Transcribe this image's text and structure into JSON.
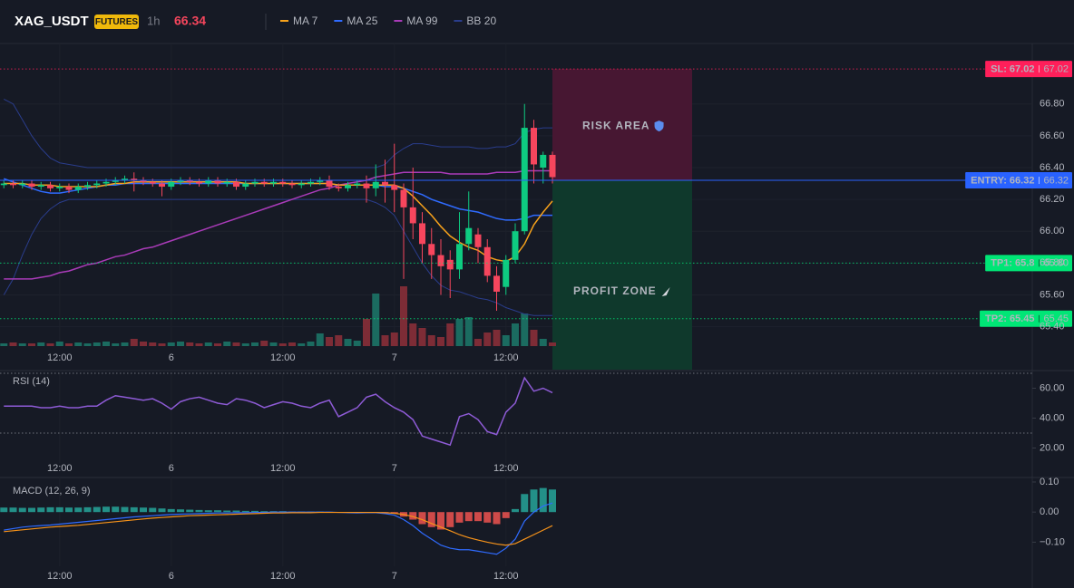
{
  "chart_data": {
    "type": "candlestick",
    "symbol": "XAG_USDT",
    "contract": "FUTURES",
    "interval": "1h",
    "last_price": 66.34,
    "categories": [
      null,
      null,
      null,
      null,
      null,
      null,
      "12:00",
      null,
      null,
      null,
      null,
      null,
      null,
      null,
      null,
      null,
      null,
      null,
      "6",
      null,
      null,
      null,
      null,
      null,
      null,
      null,
      null,
      null,
      null,
      null,
      "12:00",
      null,
      null,
      null,
      null,
      null,
      null,
      null,
      null,
      null,
      null,
      null,
      "7",
      null,
      null,
      null,
      null,
      null,
      null,
      null,
      null,
      null,
      null,
      null,
      "12:00",
      null,
      null,
      null,
      null,
      null
    ],
    "open": [
      66.29,
      66.3,
      66.29,
      66.3,
      66.28,
      66.29,
      66.27,
      66.28,
      66.26,
      66.28,
      66.29,
      66.3,
      66.31,
      66.32,
      66.33,
      66.32,
      66.31,
      66.3,
      66.28,
      66.31,
      66.32,
      66.31,
      66.3,
      66.32,
      66.3,
      66.31,
      66.28,
      66.3,
      66.31,
      66.3,
      66.31,
      66.3,
      66.29,
      66.3,
      66.31,
      66.32,
      66.28,
      66.27,
      66.29,
      66.3,
      66.27,
      66.31,
      66.29,
      66.26,
      66.15,
      66.05,
      65.92,
      65.85,
      65.82,
      65.76,
      65.92,
      65.98,
      65.9,
      65.72,
      65.65,
      65.82,
      66.0,
      66.65,
      66.4,
      66.48
    ],
    "high": [
      66.32,
      66.32,
      66.32,
      66.32,
      66.31,
      66.31,
      66.3,
      66.3,
      66.3,
      66.31,
      66.32,
      66.33,
      66.34,
      66.35,
      66.37,
      66.34,
      66.33,
      66.32,
      66.33,
      66.34,
      66.34,
      66.33,
      66.34,
      66.34,
      66.33,
      66.33,
      66.32,
      66.33,
      66.33,
      66.33,
      66.33,
      66.32,
      66.32,
      66.33,
      66.34,
      66.35,
      66.3,
      66.31,
      66.32,
      66.35,
      66.42,
      66.45,
      66.55,
      66.3,
      66.4,
      66.12,
      66.02,
      65.95,
      65.88,
      66.12,
      66.25,
      66.02,
      65.95,
      65.78,
      65.85,
      66.05,
      66.8,
      66.7,
      66.5,
      66.5
    ],
    "low": [
      66.27,
      66.27,
      66.27,
      66.26,
      66.26,
      66.25,
      66.25,
      66.24,
      66.24,
      66.26,
      66.27,
      66.28,
      66.29,
      66.3,
      66.25,
      66.29,
      66.28,
      66.22,
      66.26,
      66.29,
      66.29,
      66.28,
      66.28,
      66.28,
      66.28,
      66.26,
      66.26,
      66.28,
      66.28,
      66.28,
      66.28,
      66.27,
      66.27,
      66.28,
      66.29,
      66.26,
      66.25,
      66.25,
      66.27,
      66.18,
      66.22,
      66.18,
      66.12,
      65.7,
      65.95,
      65.8,
      65.7,
      65.6,
      65.58,
      65.7,
      65.88,
      65.8,
      65.68,
      65.5,
      65.6,
      65.8,
      65.98,
      66.3,
      66.3,
      66.3
    ],
    "close": [
      66.3,
      66.29,
      66.3,
      66.28,
      66.29,
      66.27,
      66.28,
      66.26,
      66.28,
      66.29,
      66.3,
      66.31,
      66.32,
      66.33,
      66.32,
      66.31,
      66.3,
      66.28,
      66.31,
      66.32,
      66.31,
      66.3,
      66.32,
      66.3,
      66.31,
      66.28,
      66.3,
      66.31,
      66.3,
      66.31,
      66.3,
      66.29,
      66.3,
      66.31,
      66.32,
      66.28,
      66.27,
      66.29,
      66.3,
      66.27,
      66.31,
      66.29,
      66.26,
      66.15,
      66.05,
      65.92,
      65.85,
      65.78,
      65.76,
      65.92,
      66.02,
      65.9,
      65.72,
      65.62,
      65.82,
      66.0,
      66.65,
      66.42,
      66.48,
      66.34
    ],
    "up_color": "#0ecb81",
    "down_color": "#f6465d",
    "volume": {
      "values": [
        3,
        4,
        3,
        3,
        4,
        3,
        5,
        3,
        4,
        3,
        4,
        5,
        3,
        4,
        8,
        5,
        4,
        3,
        4,
        5,
        4,
        3,
        4,
        3,
        5,
        4,
        3,
        4,
        6,
        4,
        3,
        4,
        3,
        5,
        14,
        10,
        12,
        8,
        6,
        30,
        58,
        12,
        15,
        66,
        25,
        20,
        12,
        10,
        25,
        30,
        32,
        8,
        15,
        18,
        12,
        25,
        36,
        18,
        8,
        4
      ],
      "up_color": "#1b6b60",
      "down_color": "#7d2c36"
    },
    "ylim": [
      65.13,
      67.18
    ],
    "yticks": [
      {
        "value": 66.8,
        "label": "66.80"
      },
      {
        "value": 66.6,
        "label": "66.60"
      },
      {
        "value": 66.4,
        "label": "66.40"
      },
      {
        "value": 66.2,
        "label": "66.20"
      },
      {
        "value": 66.0,
        "label": "66.00"
      },
      {
        "value": 65.8,
        "label": "65.80"
      },
      {
        "value": 65.6,
        "label": "65.60"
      },
      {
        "value": 65.4,
        "label": "65.40"
      }
    ],
    "overlays": [
      {
        "name": "MA 7",
        "color": "#f7a21b",
        "values": [
          66.3,
          66.3,
          66.3,
          66.29,
          66.29,
          66.29,
          66.28,
          66.28,
          66.28,
          66.28,
          66.28,
          66.29,
          66.3,
          66.3,
          66.31,
          66.31,
          66.31,
          66.31,
          66.31,
          66.31,
          66.31,
          66.31,
          66.31,
          66.31,
          66.31,
          66.31,
          66.3,
          66.3,
          66.3,
          66.3,
          66.3,
          66.3,
          66.3,
          66.3,
          66.3,
          66.3,
          66.29,
          66.29,
          66.29,
          66.29,
          66.29,
          66.29,
          66.29,
          66.27,
          66.22,
          66.16,
          66.1,
          66.03,
          65.97,
          65.93,
          65.9,
          65.88,
          65.84,
          65.82,
          65.81,
          65.84,
          65.92,
          66.04,
          66.12,
          66.19
        ]
      },
      {
        "name": "MA 25",
        "color": "#2f6bff",
        "values": [
          66.33,
          66.31,
          66.29,
          66.27,
          66.25,
          66.24,
          66.24,
          66.25,
          66.26,
          66.27,
          66.28,
          66.29,
          66.29,
          66.3,
          66.3,
          66.3,
          66.3,
          66.3,
          66.3,
          66.3,
          66.3,
          66.3,
          66.3,
          66.3,
          66.3,
          66.3,
          66.3,
          66.3,
          66.3,
          66.3,
          66.3,
          66.3,
          66.3,
          66.3,
          66.3,
          66.3,
          66.29,
          66.29,
          66.29,
          66.29,
          66.29,
          66.28,
          66.28,
          66.27,
          66.25,
          66.23,
          66.2,
          66.18,
          66.16,
          66.14,
          66.13,
          66.12,
          66.1,
          66.08,
          66.07,
          66.07,
          66.08,
          66.1,
          66.1,
          66.1
        ]
      },
      {
        "name": "MA 99",
        "color": "#a93bb8",
        "values": [
          65.7,
          65.7,
          65.7,
          65.7,
          65.71,
          65.72,
          65.74,
          65.75,
          65.77,
          65.79,
          65.8,
          65.82,
          65.84,
          65.85,
          65.87,
          65.89,
          65.9,
          65.92,
          65.94,
          65.96,
          65.98,
          66.0,
          66.02,
          66.04,
          66.06,
          66.08,
          66.1,
          66.12,
          66.14,
          66.16,
          66.18,
          66.2,
          66.22,
          66.24,
          66.26,
          66.27,
          66.29,
          66.3,
          66.31,
          66.32,
          66.34,
          66.35,
          66.36,
          66.37,
          66.37,
          66.37,
          66.37,
          66.37,
          66.36,
          66.36,
          66.36,
          66.36,
          66.36,
          66.37,
          66.37,
          66.37,
          66.38,
          66.38,
          66.38,
          66.38
        ]
      },
      {
        "name": "BB 20",
        "color": "#2a3d8c",
        "upper": [
          66.83,
          66.8,
          66.7,
          66.6,
          66.52,
          66.46,
          66.43,
          66.42,
          66.41,
          66.4,
          66.4,
          66.4,
          66.4,
          66.4,
          66.4,
          66.4,
          66.4,
          66.4,
          66.4,
          66.4,
          66.4,
          66.4,
          66.4,
          66.4,
          66.4,
          66.4,
          66.4,
          66.4,
          66.4,
          66.4,
          66.4,
          66.4,
          66.4,
          66.4,
          66.4,
          66.4,
          66.4,
          66.4,
          66.4,
          66.4,
          66.4,
          66.42,
          66.48,
          66.52,
          66.55,
          66.55,
          66.54,
          66.53,
          66.53,
          66.53,
          66.53,
          66.52,
          66.52,
          66.53,
          66.53,
          66.55,
          66.62,
          66.64,
          66.65,
          66.65
        ],
        "lower": [
          65.6,
          65.7,
          65.85,
          65.98,
          66.08,
          66.14,
          66.18,
          66.2,
          66.2,
          66.2,
          66.2,
          66.2,
          66.2,
          66.2,
          66.2,
          66.2,
          66.2,
          66.2,
          66.2,
          66.2,
          66.2,
          66.2,
          66.2,
          66.2,
          66.2,
          66.2,
          66.2,
          66.2,
          66.2,
          66.2,
          66.2,
          66.2,
          66.2,
          66.2,
          66.2,
          66.2,
          66.2,
          66.2,
          66.2,
          66.2,
          66.18,
          66.15,
          66.1,
          66.0,
          65.9,
          65.8,
          65.72,
          65.66,
          65.63,
          65.62,
          65.6,
          65.58,
          65.57,
          65.55,
          65.52,
          65.5,
          65.48,
          65.47,
          65.47,
          65.47
        ]
      }
    ],
    "levels": [
      {
        "value": 67.02,
        "label": "SL: 67.02",
        "color": "#ff1f5a",
        "text_color": "#ffffff",
        "style": "dotted"
      },
      {
        "value": 66.32,
        "label": "ENTRY: 66.32",
        "color": "#2962ff",
        "text_color": "#ffffff",
        "style": "solid"
      },
      {
        "value": 65.8,
        "label": "TP1: 65.8",
        "price_label": "65.80",
        "color": "#00e676",
        "text_color": "#0b1a12",
        "style": "dotted"
      },
      {
        "value": 65.45,
        "label": "TP2: 65.45",
        "color": "#00e676",
        "text_color": "#0b1a12",
        "style": "dotted"
      }
    ],
    "zones": [
      {
        "label": "RISK AREA",
        "color": "#4a1733",
        "text_color": "#ff2e63"
      },
      {
        "label": "PROFIT ZONE",
        "color": "#0f3b2c",
        "text_color": "#12d18e"
      }
    ],
    "rsi": {
      "title": "RSI (14)",
      "color": "#8e5bd6",
      "values": [
        48,
        48,
        48,
        48,
        47,
        47,
        48,
        47,
        47,
        48,
        48,
        52,
        55,
        54,
        53,
        52,
        53,
        50,
        46,
        51,
        53,
        54,
        52,
        50,
        49,
        53,
        52,
        50,
        47,
        49,
        51,
        50,
        48,
        47,
        50,
        52,
        41,
        44,
        47,
        54,
        56,
        51,
        47,
        44,
        39,
        28,
        26,
        24,
        22,
        41,
        43,
        39,
        31,
        29,
        44,
        50,
        67,
        58,
        60,
        57
      ],
      "ylim": [
        10,
        70
      ],
      "yticks": [
        {
          "value": 60,
          "label": "60.00"
        },
        {
          "value": 40,
          "label": "40.00"
        },
        {
          "value": 20,
          "label": "20.00"
        }
      ],
      "bands": [
        70,
        30
      ]
    },
    "macd": {
      "title": "MACD (12, 26, 9)",
      "macd": {
        "color": "#2f6bff",
        "values": [
          -0.06,
          -0.055,
          -0.05,
          -0.047,
          -0.045,
          -0.043,
          -0.04,
          -0.037,
          -0.034,
          -0.031,
          -0.028,
          -0.025,
          -0.022,
          -0.019,
          -0.016,
          -0.014,
          -0.012,
          -0.01,
          -0.008,
          -0.007,
          -0.006,
          -0.005,
          -0.004,
          -0.003,
          -0.003,
          -0.002,
          -0.002,
          -0.001,
          -0.001,
          0,
          0,
          0,
          0,
          0,
          0,
          0,
          -0.001,
          -0.002,
          -0.003,
          -0.002,
          -0.002,
          -0.005,
          -0.01,
          -0.025,
          -0.045,
          -0.07,
          -0.09,
          -0.11,
          -0.12,
          -0.125,
          -0.125,
          -0.13,
          -0.135,
          -0.14,
          -0.12,
          -0.09,
          -0.03,
          0,
          0.02,
          0.03
        ]
      },
      "signal": {
        "color": "#f7931a",
        "values": [
          -0.065,
          -0.062,
          -0.059,
          -0.056,
          -0.053,
          -0.05,
          -0.048,
          -0.046,
          -0.044,
          -0.041,
          -0.038,
          -0.035,
          -0.032,
          -0.029,
          -0.026,
          -0.023,
          -0.02,
          -0.018,
          -0.016,
          -0.014,
          -0.012,
          -0.011,
          -0.01,
          -0.009,
          -0.008,
          -0.007,
          -0.006,
          -0.005,
          -0.004,
          -0.003,
          -0.003,
          -0.002,
          -0.002,
          -0.002,
          -0.001,
          -0.001,
          -0.001,
          -0.001,
          -0.001,
          -0.001,
          -0.001,
          -0.002,
          -0.004,
          -0.008,
          -0.015,
          -0.025,
          -0.038,
          -0.05,
          -0.062,
          -0.075,
          -0.085,
          -0.093,
          -0.1,
          -0.106,
          -0.11,
          -0.105,
          -0.09,
          -0.075,
          -0.06,
          -0.045
        ]
      },
      "histogram": {
        "up_color": "#26a69a",
        "down_color": "#ef5350",
        "values": [
          0.015,
          0.015,
          0.014,
          0.014,
          0.015,
          0.016,
          0.016,
          0.015,
          0.015,
          0.016,
          0.017,
          0.018,
          0.018,
          0.017,
          0.016,
          0.015,
          0.014,
          0.012,
          0.01,
          0.009,
          0.008,
          0.007,
          0.006,
          0.006,
          0.005,
          0.005,
          0.004,
          0.004,
          0.003,
          0.003,
          0.003,
          0.002,
          0.002,
          0.002,
          0.002,
          0.001,
          -0.001,
          -0.002,
          -0.002,
          -0.001,
          0,
          -0.002,
          -0.005,
          -0.015,
          -0.025,
          -0.04,
          -0.05,
          -0.058,
          -0.05,
          -0.035,
          -0.03,
          -0.03,
          -0.035,
          -0.04,
          -0.02,
          0.01,
          0.06,
          0.075,
          0.08,
          0.075
        ]
      },
      "ylim": [
        -0.18,
        0.115
      ],
      "yticks": [
        {
          "value": 0.1,
          "label": "0.10"
        },
        {
          "value": 0,
          "label": "0.00"
        },
        {
          "value": -0.1,
          "label": "−0.10"
        }
      ]
    }
  }
}
